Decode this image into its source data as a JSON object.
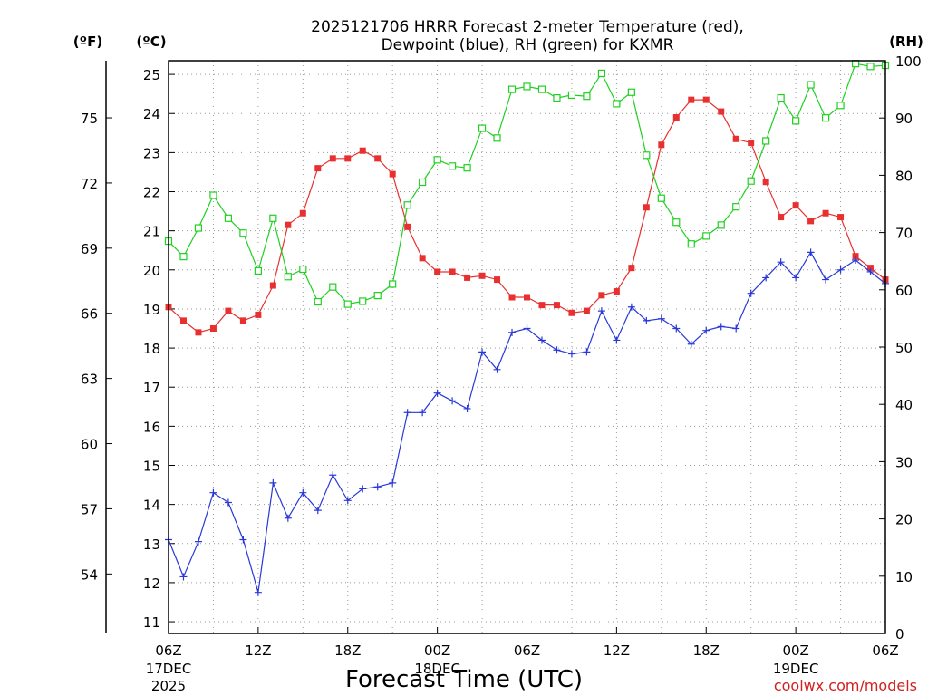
{
  "chart_data": {
    "type": "line",
    "title": [
      "2025121706 HRRR Forecast 2-meter Temperature (red),",
      "Dewpoint (blue), RH (green) for KXMR"
    ],
    "xlabel": "Forecast Time (UTC)",
    "credit": "coolwx.com/models",
    "units": {
      "fahrenheit": "(ºF)",
      "celsius": "(ºC)",
      "rh": "(RH)"
    },
    "x_ticks": [
      {
        "h": 0,
        "label": "06Z",
        "sub1": "17DEC",
        "sub2": "2025"
      },
      {
        "h": 6,
        "label": "12Z",
        "sub1": "",
        "sub2": ""
      },
      {
        "h": 12,
        "label": "18Z",
        "sub1": "",
        "sub2": ""
      },
      {
        "h": 18,
        "label": "00Z",
        "sub1": "18DEC",
        "sub2": ""
      },
      {
        "h": 24,
        "label": "06Z",
        "sub1": "",
        "sub2": ""
      },
      {
        "h": 30,
        "label": "12Z",
        "sub1": "",
        "sub2": ""
      },
      {
        "h": 36,
        "label": "18Z",
        "sub1": "",
        "sub2": ""
      },
      {
        "h": 42,
        "label": "00Z",
        "sub1": "19DEC",
        "sub2": ""
      },
      {
        "h": 48,
        "label": "06Z",
        "sub1": "",
        "sub2": ""
      }
    ],
    "celsius_ticks": [
      11,
      12,
      13,
      14,
      15,
      16,
      17,
      18,
      19,
      20,
      21,
      22,
      23,
      24,
      25
    ],
    "fahrenheit_ticks": [
      54,
      57,
      60,
      63,
      66,
      69,
      72,
      75
    ],
    "rh_ticks": [
      0,
      10,
      20,
      30,
      40,
      50,
      60,
      70,
      80,
      90,
      100
    ],
    "ylim_celsius": [
      10.7,
      25.35
    ],
    "ylim_rh": [
      0,
      100
    ],
    "xlim_hours": [
      0,
      48
    ],
    "grid": true,
    "series": [
      {
        "color": "#e83030",
        "marker": "filled-square",
        "axis": "celsius",
        "values": [
          19.05,
          18.7,
          18.4,
          18.5,
          18.95,
          18.7,
          18.85,
          19.6,
          21.15,
          21.45,
          22.6,
          22.85,
          22.85,
          23.05,
          22.85,
          22.45,
          21.1,
          20.3,
          19.95,
          19.95,
          19.8,
          19.85,
          19.75,
          19.3,
          19.3,
          19.1,
          19.1,
          18.9,
          18.95,
          19.35,
          19.45,
          20.05,
          21.6,
          23.2,
          23.9,
          24.35,
          24.35,
          24.05,
          23.35,
          23.25,
          22.25,
          21.35,
          21.65,
          21.25,
          21.45,
          21.35,
          20.35,
          20.05,
          19.75
        ]
      },
      {
        "color": "#2838d8",
        "marker": "plus",
        "axis": "celsius",
        "values": [
          13.1,
          12.15,
          13.05,
          14.3,
          14.05,
          13.1,
          11.75,
          14.55,
          13.65,
          14.3,
          13.85,
          14.75,
          14.1,
          14.4,
          14.45,
          14.55,
          16.35,
          16.35,
          16.85,
          16.65,
          16.45,
          17.9,
          17.45,
          18.4,
          18.5,
          18.2,
          17.95,
          17.85,
          17.9,
          18.95,
          18.2,
          19.05,
          18.7,
          18.75,
          18.5,
          18.1,
          18.45,
          18.55,
          18.5,
          19.4,
          19.8,
          20.2,
          19.8,
          20.45,
          19.75,
          20.0,
          20.25,
          19.95,
          19.65
        ]
      },
      {
        "color": "#20d020",
        "marker": "open-square",
        "axis": "rh",
        "values": [
          68.5,
          65.8,
          70.8,
          76.5,
          72.5,
          69.9,
          63.3,
          72.5,
          62.3,
          63.6,
          57.9,
          60.5,
          57.5,
          58.0,
          59.0,
          61.0,
          74.8,
          78.8,
          82.7,
          81.6,
          81.3,
          88.2,
          86.5,
          95.0,
          95.5,
          95.0,
          93.5,
          94.0,
          93.8,
          97.8,
          92.5,
          94.5,
          83.5,
          76.0,
          71.8,
          68.0,
          69.4,
          71.3,
          74.5,
          79.0,
          86.0,
          93.5,
          89.5,
          95.8,
          90.0,
          92.2,
          99.5,
          99.0,
          99.2
        ]
      }
    ]
  }
}
